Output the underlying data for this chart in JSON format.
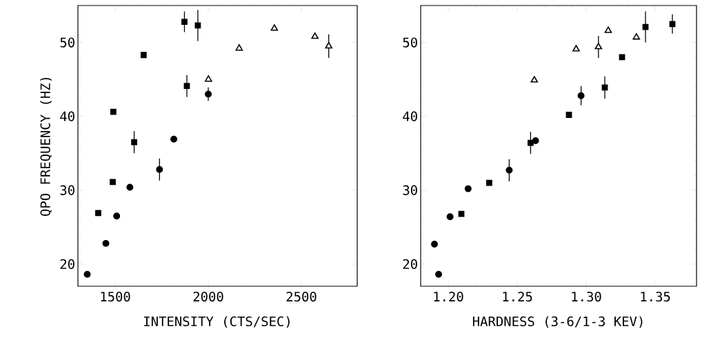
{
  "chart_data": [
    {
      "type": "scatter",
      "xlabel": "INTENSITY (CTS/SEC)",
      "ylabel": "QPO FREQUENCY (HZ)",
      "xlim": [
        1300,
        2800
      ],
      "ylim": [
        17,
        55
      ],
      "xticks": [
        1500,
        2000,
        2500
      ],
      "yticks": [
        20,
        30,
        40,
        50
      ],
      "grid": false,
      "series": [
        {
          "marker": "circle",
          "color": "#000000",
          "x": [
            1350,
            1450,
            1508,
            1579,
            1738,
            1815,
            2000
          ],
          "values": [
            18.6,
            22.8,
            26.5,
            30.4,
            32.8,
            36.9,
            43.0
          ],
          "errors": [
            null,
            null,
            null,
            null,
            1.5,
            null,
            0.9
          ]
        },
        {
          "marker": "square",
          "color": "#000000",
          "x": [
            1409,
            1487,
            1602,
            1885
          ],
          "values": [
            26.9,
            31.1,
            36.5,
            44.1
          ],
          "errors": [
            null,
            null,
            1.5,
            1.5
          ]
        },
        {
          "marker": "square",
          "color": "#000000",
          "x": [
            1490,
            1653,
            1872,
            1944
          ],
          "values": [
            40.6,
            48.3,
            52.8,
            52.3
          ],
          "errors": [
            null,
            null,
            1.4,
            2.1
          ]
        },
        {
          "marker": "triangle",
          "color": "#000000",
          "x": [
            2001,
            2166,
            2355,
            2573,
            2647
          ],
          "values": [
            45.0,
            49.2,
            51.9,
            50.8,
            49.5
          ],
          "errors": [
            null,
            null,
            null,
            null,
            1.6
          ]
        }
      ]
    },
    {
      "type": "scatter",
      "xlabel": "HARDNESS (3-6/1-3 KEV)",
      "xlim": [
        1.18,
        1.38
      ],
      "ylim": [
        17,
        55
      ],
      "xticks": [
        {
          "value": 1.2,
          "label": "1.20"
        },
        {
          "value": 1.25,
          "label": "1.25"
        },
        {
          "value": 1.3,
          "label": "1.30"
        },
        {
          "value": 1.35,
          "label": "1.35"
        }
      ],
      "yticks": [
        20,
        30,
        40,
        50
      ],
      "grid": false,
      "series": [
        {
          "marker": "circle",
          "color": "#000000",
          "x": [
            1.19,
            1.193,
            1.2013,
            1.2144,
            1.2442,
            1.2633,
            1.2963
          ],
          "values": [
            22.7,
            18.6,
            26.4,
            30.2,
            32.7,
            36.7,
            42.8
          ],
          "errors": [
            null,
            null,
            null,
            null,
            1.5,
            null,
            1.3
          ]
        },
        {
          "marker": "square",
          "color": "#000000",
          "x": [
            1.2095,
            1.2297,
            1.2597,
            1.3135
          ],
          "values": [
            26.8,
            31.0,
            36.4,
            43.9
          ],
          "errors": [
            null,
            null,
            1.5,
            1.5
          ]
        },
        {
          "marker": "square",
          "color": "#000000",
          "x": [
            1.2875,
            1.326,
            1.343,
            1.3625
          ],
          "values": [
            40.2,
            48.0,
            52.1,
            52.5
          ],
          "errors": [
            null,
            null,
            2.1,
            1.3
          ]
        },
        {
          "marker": "triangle",
          "color": "#000000",
          "x": [
            1.2624,
            1.2927,
            1.3089,
            1.316,
            1.3364
          ],
          "values": [
            44.9,
            49.1,
            49.4,
            51.6,
            50.7
          ],
          "errors": [
            null,
            null,
            1.5,
            null,
            null
          ]
        }
      ]
    }
  ]
}
